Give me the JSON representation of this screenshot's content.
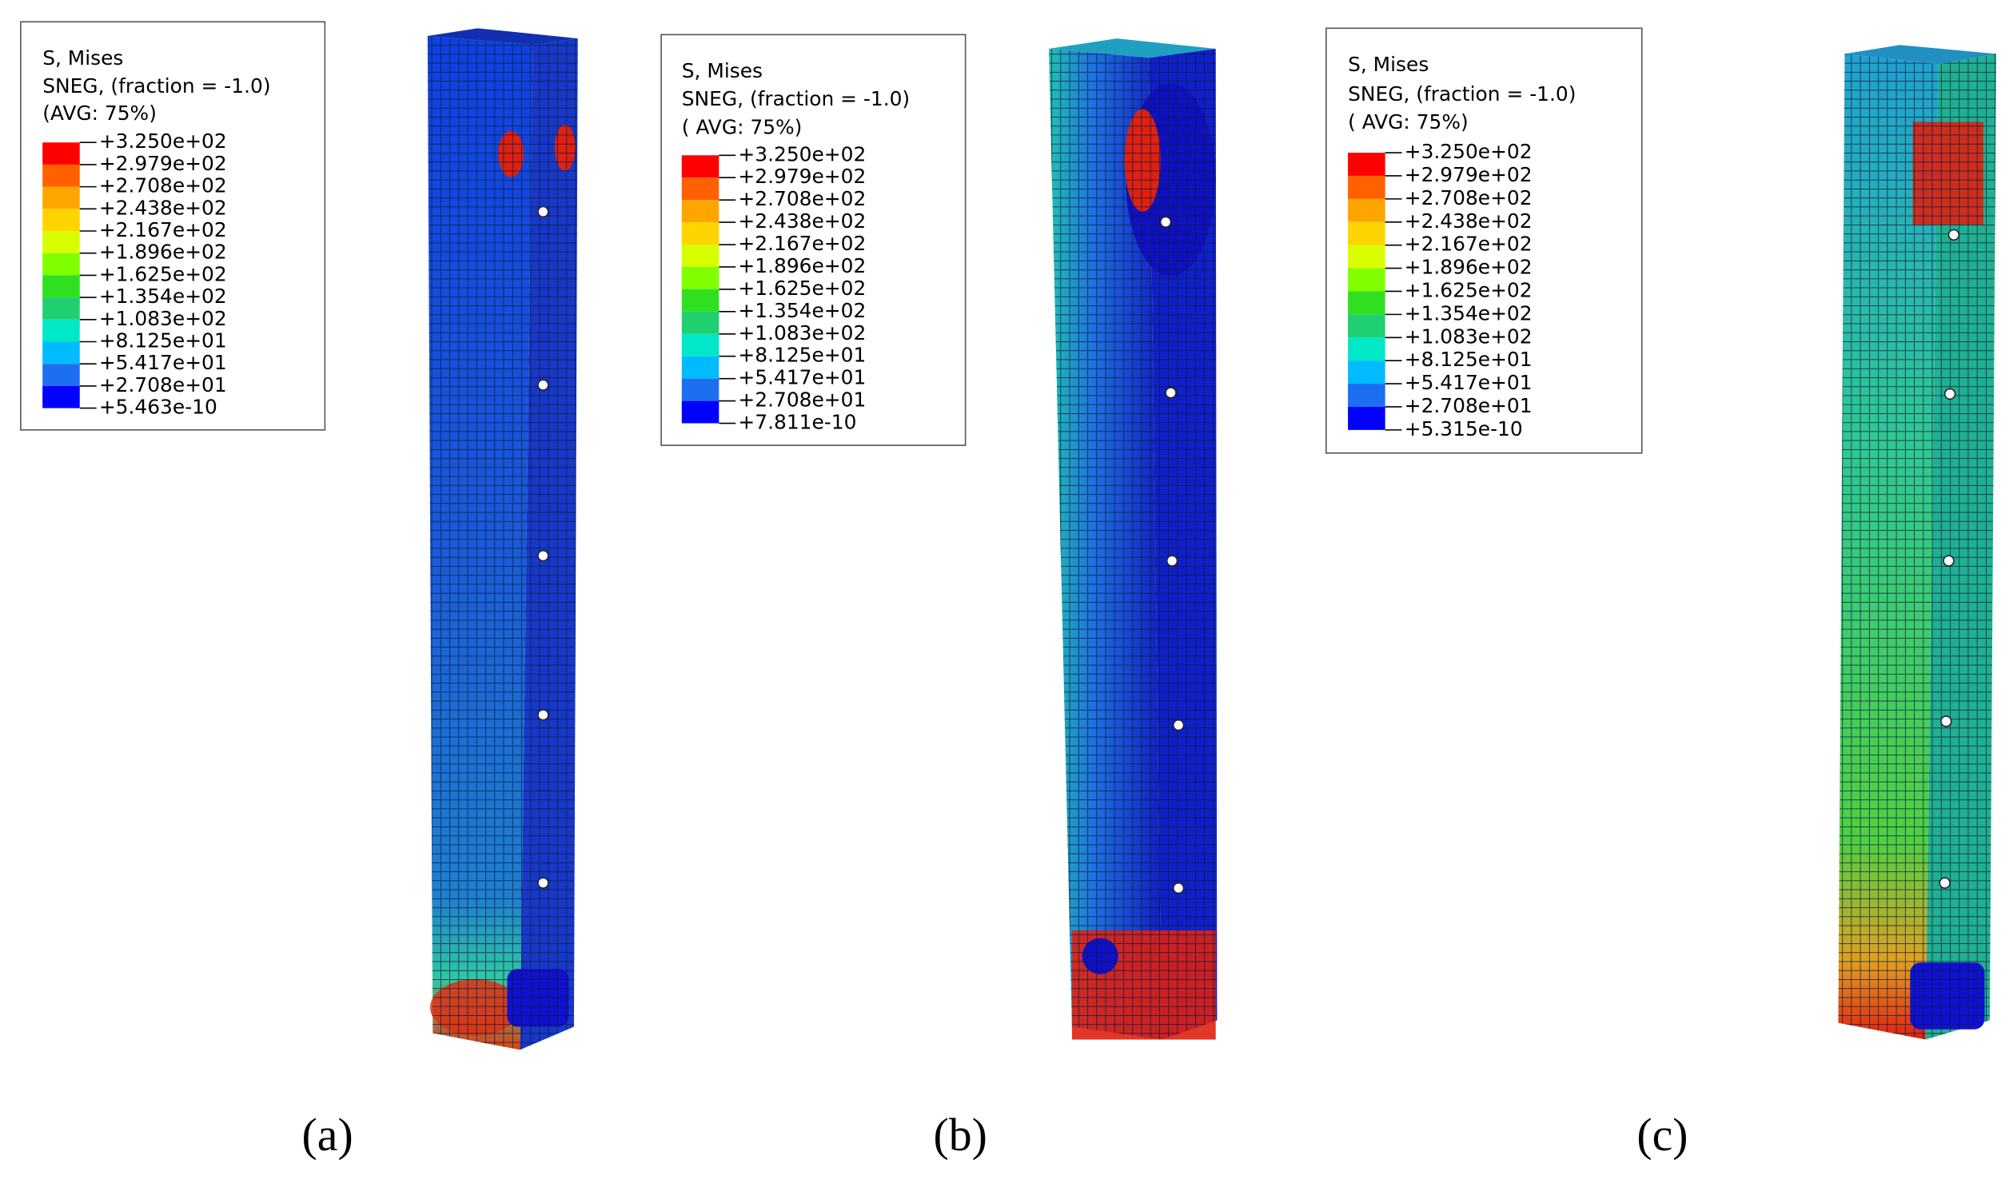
{
  "panels": [
    {
      "caption": "(a)",
      "legend": {
        "title": "S, Mises",
        "field": "SNEG, (fraction = -1.0)",
        "avg": "(AVG: 75%)",
        "labels": [
          "+3.250e+02",
          "+2.979e+02",
          "+2.708e+02",
          "+2.438e+02",
          "+2.167e+02",
          "+1.896e+02",
          "+1.625e+02",
          "+1.354e+02",
          "+1.083e+02",
          "+8.125e+01",
          "+5.417e+01",
          "+2.708e+01",
          "+5.463e-10"
        ]
      }
    },
    {
      "caption": "(b)",
      "legend": {
        "title": "S, Mises",
        "field": "SNEG, (fraction = -1.0)",
        "avg": "( AVG: 75%)",
        "labels": [
          "+3.250e+02",
          "+2.979e+02",
          "+2.708e+02",
          "+2.438e+02",
          "+2.167e+02",
          "+1.896e+02",
          "+1.625e+02",
          "+1.354e+02",
          "+1.083e+02",
          "+8.125e+01",
          "+5.417e+01",
          "+2.708e+01",
          "+7.811e-10"
        ]
      }
    },
    {
      "caption": "(c)",
      "legend": {
        "title": "S, Mises",
        "field": "SNEG, (fraction = -1.0)",
        "avg": "( AVG: 75%)",
        "labels": [
          "+3.250e+02",
          "+2.979e+02",
          "+2.708e+02",
          "+2.438e+02",
          "+2.167e+02",
          "+1.896e+02",
          "+1.625e+02",
          "+1.354e+02",
          "+1.083e+02",
          "+8.125e+01",
          "+5.417e+01",
          "+2.708e+01",
          "+5.315e-10"
        ]
      }
    }
  ]
}
